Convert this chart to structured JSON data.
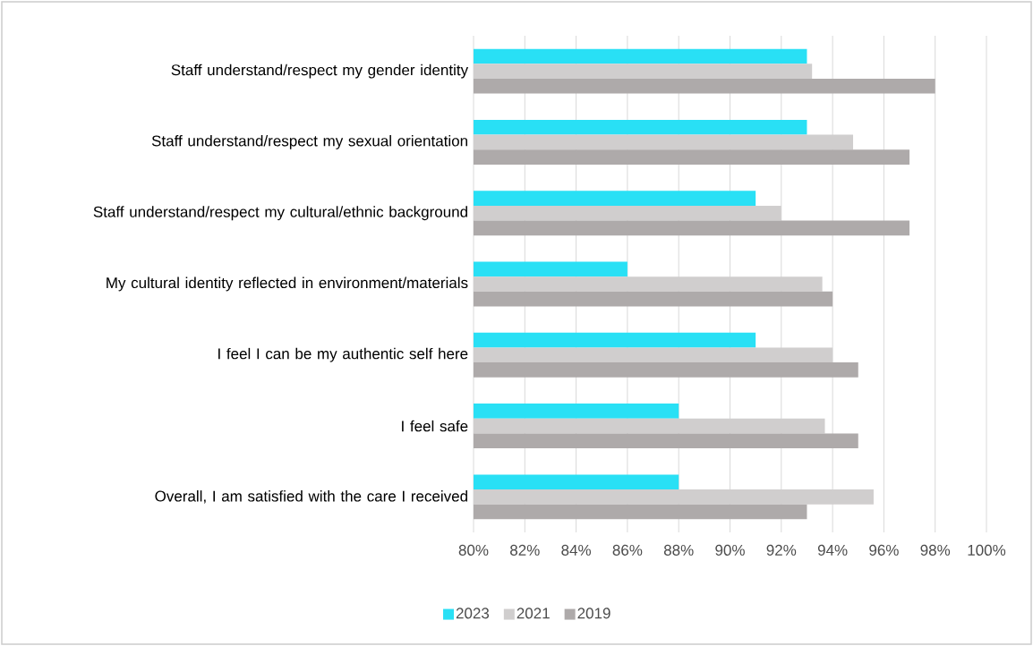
{
  "chart_data": {
    "type": "bar",
    "orientation": "horizontal",
    "categories": [
      "Staff understand/respect my gender identity",
      "Staff understand/respect my sexual orientation",
      "Staff understand/respect my cultural/ethnic background",
      "My cultural identity reflected in environment/materials",
      "I feel I can be my authentic self here",
      "I feel safe",
      "Overall, I am satisfied with the care I received"
    ],
    "series": [
      {
        "name": "2023",
        "color": "#29e0f5",
        "values": [
          93,
          93,
          91,
          86,
          91,
          88,
          88
        ]
      },
      {
        "name": "2021",
        "color": "#d0cece",
        "values": [
          93.2,
          94.8,
          92,
          93.6,
          94,
          93.7,
          95.6
        ]
      },
      {
        "name": "2019",
        "color": "#aeaaaa",
        "values": [
          98,
          97,
          97,
          94,
          95,
          95,
          93
        ]
      }
    ],
    "xlim": [
      80,
      100
    ],
    "xticks": [
      {
        "value": 80,
        "label": "80%"
      },
      {
        "value": 82,
        "label": "82%"
      },
      {
        "value": 84,
        "label": "84%"
      },
      {
        "value": 86,
        "label": "86%"
      },
      {
        "value": 88,
        "label": "88%"
      },
      {
        "value": 90,
        "label": "90%"
      },
      {
        "value": 92,
        "label": "92%"
      },
      {
        "value": 94,
        "label": "94%"
      },
      {
        "value": 96,
        "label": "96%"
      },
      {
        "value": 98,
        "label": "98%"
      },
      {
        "value": 100,
        "label": "100%"
      }
    ],
    "grid": "x",
    "legend": "bottom"
  }
}
